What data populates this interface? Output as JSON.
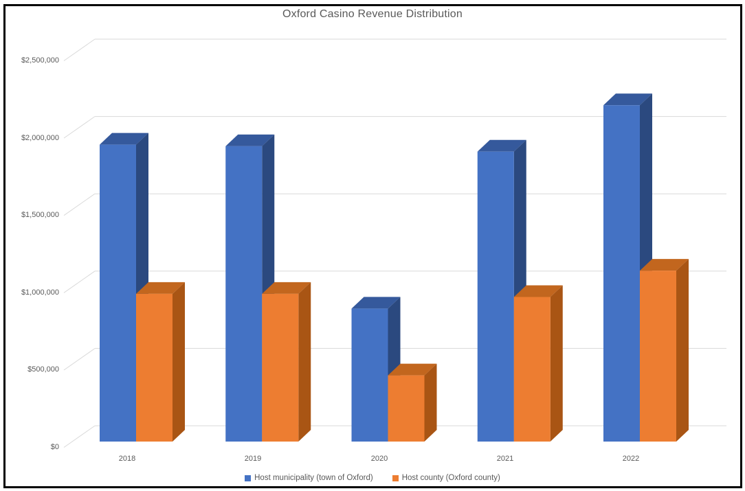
{
  "window": {
    "background": "#ffffff",
    "border_color": "#000000"
  },
  "chart_data": {
    "type": "bar",
    "subtype": "3d-clustered-column",
    "title": "Oxford Casino Revenue Distribution",
    "xlabel": "",
    "ylabel": "",
    "categories": [
      "2018",
      "2019",
      "2020",
      "2021",
      "2022"
    ],
    "series": [
      {
        "name": "Host municipality (town of Oxford)",
        "color": "#4472C4",
        "color_top": "#35599C",
        "color_side": "#2B497F",
        "values": [
          1920000,
          1910000,
          860000,
          1875000,
          2175000
        ]
      },
      {
        "name": "Host county (Oxford county)",
        "color": "#ED7D31",
        "color_top": "#C2661E",
        "color_side": "#A95514",
        "values": [
          955000,
          955000,
          428000,
          935000,
          1105000
        ]
      }
    ],
    "ylim": [
      0,
      2500000
    ],
    "y_ticks": [
      "$0",
      "$500,000",
      "$1,000,000",
      "$1,500,000",
      "$2,000,000",
      "$2,500,000"
    ],
    "y_tick_values": [
      0,
      500000,
      1000000,
      1500000,
      2000000,
      2500000
    ],
    "grid": true,
    "gridline_color": "#D9D9D9",
    "text_color": "#595959",
    "legend_position": "bottom"
  }
}
